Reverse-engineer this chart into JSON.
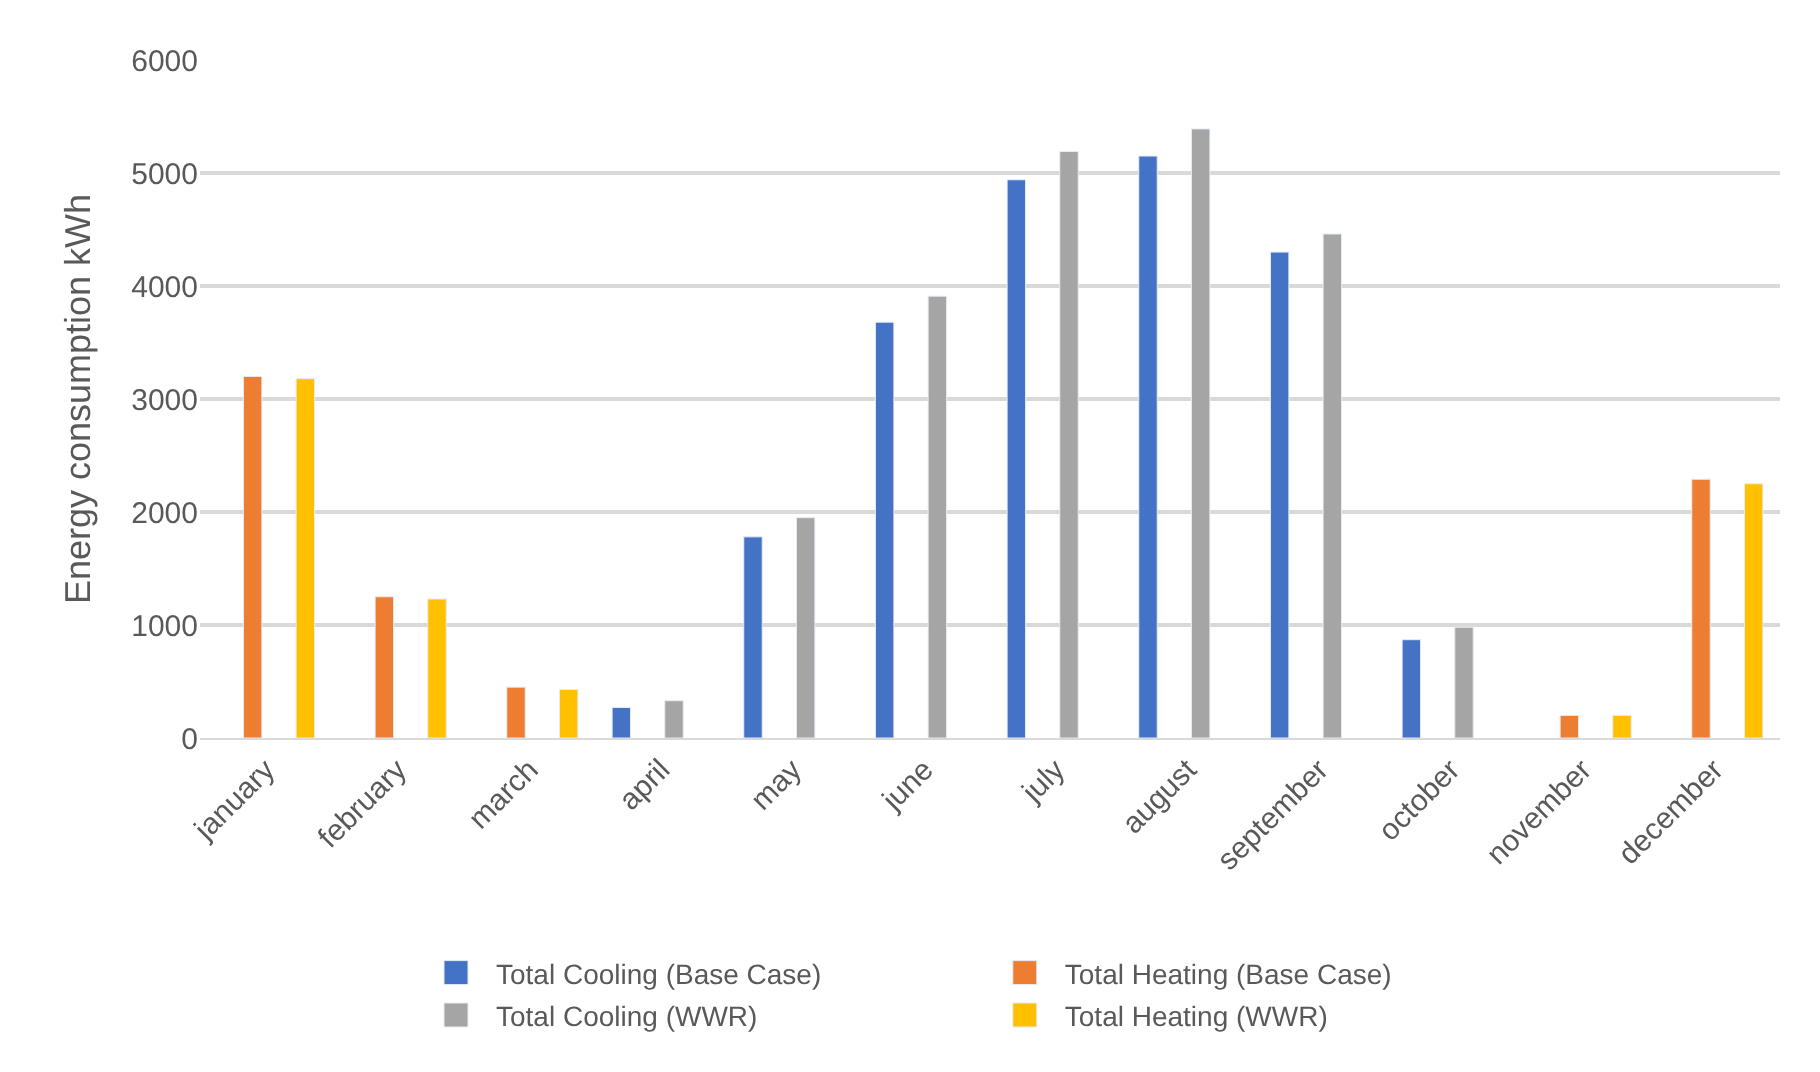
{
  "chart_data": {
    "type": "bar",
    "ylabel": "Energy consumption kWh",
    "categories": [
      "january",
      "february",
      "march",
      "april",
      "may",
      "june",
      "july",
      "august",
      "september",
      "october",
      "november",
      "december"
    ],
    "series": [
      {
        "name": "Total Cooling (Base Case)",
        "color": "#4472c4",
        "values": [
          null,
          null,
          null,
          270,
          1780,
          3680,
          4940,
          5150,
          4300,
          870,
          null,
          null
        ]
      },
      {
        "name": "Total Heating (Base Case)",
        "color": "#ed7d31",
        "values": [
          3200,
          1250,
          450,
          null,
          null,
          null,
          null,
          null,
          null,
          null,
          200,
          2290
        ]
      },
      {
        "name": "Total Cooling (WWR)",
        "color": "#a5a5a5",
        "values": [
          null,
          null,
          null,
          330,
          1950,
          3910,
          5190,
          5390,
          4460,
          980,
          null,
          null
        ]
      },
      {
        "name": "Total Heating (WWR)",
        "color": "#ffc000",
        "values": [
          3180,
          1230,
          430,
          null,
          null,
          null,
          null,
          null,
          null,
          null,
          200,
          2250
        ]
      }
    ],
    "ylim": [
      0,
      6000
    ],
    "yticks": [
      0,
      1000,
      2000,
      3000,
      4000,
      5000,
      6000
    ],
    "grid": "y",
    "legend": "bottom"
  }
}
